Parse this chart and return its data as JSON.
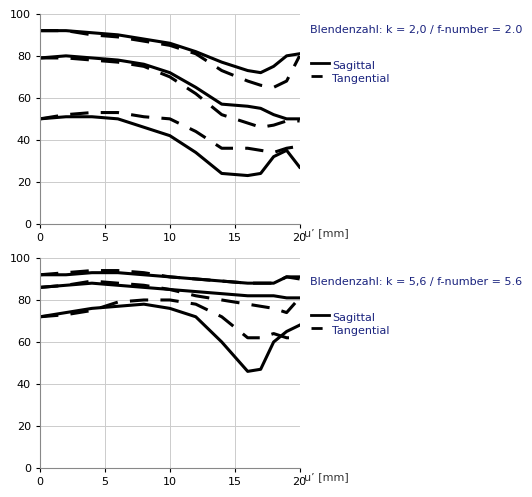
{
  "title1": "Blendenzahl: k = 2,0 / f-number = 2.0",
  "title2": "Blendenzahl: k = 5,6 / f-number = 5.6",
  "xlabel": "u’ [mm]",
  "xlim": [
    0,
    20
  ],
  "ylim": [
    0,
    100
  ],
  "xticks": [
    0,
    5,
    10,
    15,
    20
  ],
  "yticks": [
    0,
    20,
    40,
    60,
    80,
    100
  ],
  "title_color": "#1a237e",
  "legend_color": "#1a237e",
  "text_color": "#333333",
  "background_color": "#ffffff",
  "grid_color": "#cccccc",
  "line_color": "#000000",
  "chart1": {
    "curves": [
      {
        "x": [
          0,
          2,
          4,
          6,
          8,
          10,
          12,
          14,
          16,
          17,
          18,
          19,
          20
        ],
        "y": [
          92,
          92,
          91,
          90,
          88,
          86,
          82,
          77,
          73,
          72,
          75,
          80,
          81
        ],
        "style": "solid",
        "lw": 2.2
      },
      {
        "x": [
          0,
          2,
          4,
          6,
          8,
          10,
          12,
          14,
          16,
          17,
          18,
          19,
          20
        ],
        "y": [
          92,
          92,
          90,
          89,
          87,
          85,
          81,
          73,
          68,
          66,
          65,
          68,
          80
        ],
        "style": "dashed",
        "lw": 2.2
      },
      {
        "x": [
          0,
          2,
          4,
          6,
          8,
          10,
          12,
          14,
          16,
          17,
          18,
          19,
          20
        ],
        "y": [
          79,
          80,
          79,
          78,
          76,
          72,
          65,
          57,
          56,
          55,
          52,
          50,
          50
        ],
        "style": "solid",
        "lw": 2.2
      },
      {
        "x": [
          0,
          2,
          4,
          6,
          8,
          10,
          12,
          14,
          16,
          17,
          18,
          19,
          20
        ],
        "y": [
          79,
          79,
          78,
          77,
          75,
          70,
          62,
          52,
          48,
          46,
          47,
          49,
          49
        ],
        "style": "dashed",
        "lw": 2.2
      },
      {
        "x": [
          0,
          2,
          4,
          6,
          8,
          10,
          12,
          14,
          16,
          17,
          18,
          19,
          20
        ],
        "y": [
          50,
          51,
          51,
          50,
          46,
          42,
          34,
          24,
          23,
          24,
          32,
          35,
          27
        ],
        "style": "solid",
        "lw": 2.2
      },
      {
        "x": [
          0,
          2,
          4,
          6,
          8,
          10,
          12,
          14,
          16,
          17,
          18,
          19,
          20
        ],
        "y": [
          50,
          52,
          53,
          53,
          51,
          50,
          44,
          36,
          36,
          35,
          34,
          36,
          37
        ],
        "style": "dashed",
        "lw": 2.2
      }
    ]
  },
  "chart2": {
    "curves": [
      {
        "x": [
          0,
          2,
          4,
          6,
          8,
          10,
          12,
          14,
          16,
          17,
          18,
          19,
          20
        ],
        "y": [
          92,
          92,
          93,
          93,
          92,
          91,
          90,
          89,
          88,
          88,
          88,
          91,
          91
        ],
        "style": "solid",
        "lw": 2.2
      },
      {
        "x": [
          0,
          2,
          4,
          6,
          8,
          10,
          12,
          14,
          16,
          17,
          18,
          19,
          20
        ],
        "y": [
          92,
          93,
          94,
          94,
          93,
          91,
          90,
          89,
          88,
          88,
          88,
          91,
          90
        ],
        "style": "dashed",
        "lw": 2.2
      },
      {
        "x": [
          0,
          2,
          4,
          6,
          8,
          10,
          12,
          14,
          16,
          17,
          18,
          19,
          20
        ],
        "y": [
          86,
          87,
          88,
          87,
          86,
          85,
          84,
          83,
          82,
          82,
          82,
          81,
          81
        ],
        "style": "solid",
        "lw": 2.2
      },
      {
        "x": [
          0,
          2,
          4,
          6,
          8,
          10,
          12,
          14,
          16,
          17,
          18,
          19,
          20
        ],
        "y": [
          86,
          87,
          89,
          88,
          87,
          85,
          82,
          80,
          78,
          77,
          76,
          74,
          81
        ],
        "style": "dashed",
        "lw": 2.2
      },
      {
        "x": [
          0,
          2,
          4,
          6,
          8,
          10,
          12,
          14,
          16,
          17,
          18,
          19,
          20
        ],
        "y": [
          72,
          74,
          76,
          77,
          78,
          76,
          72,
          60,
          46,
          47,
          60,
          65,
          68
        ],
        "style": "solid",
        "lw": 2.2
      },
      {
        "x": [
          0,
          2,
          4,
          6,
          8,
          10,
          12,
          14,
          16,
          17,
          18,
          19,
          20
        ],
        "y": [
          72,
          73,
          75,
          79,
          80,
          80,
          78,
          72,
          62,
          62,
          64,
          62,
          62
        ],
        "style": "dashed",
        "lw": 2.2
      }
    ]
  }
}
